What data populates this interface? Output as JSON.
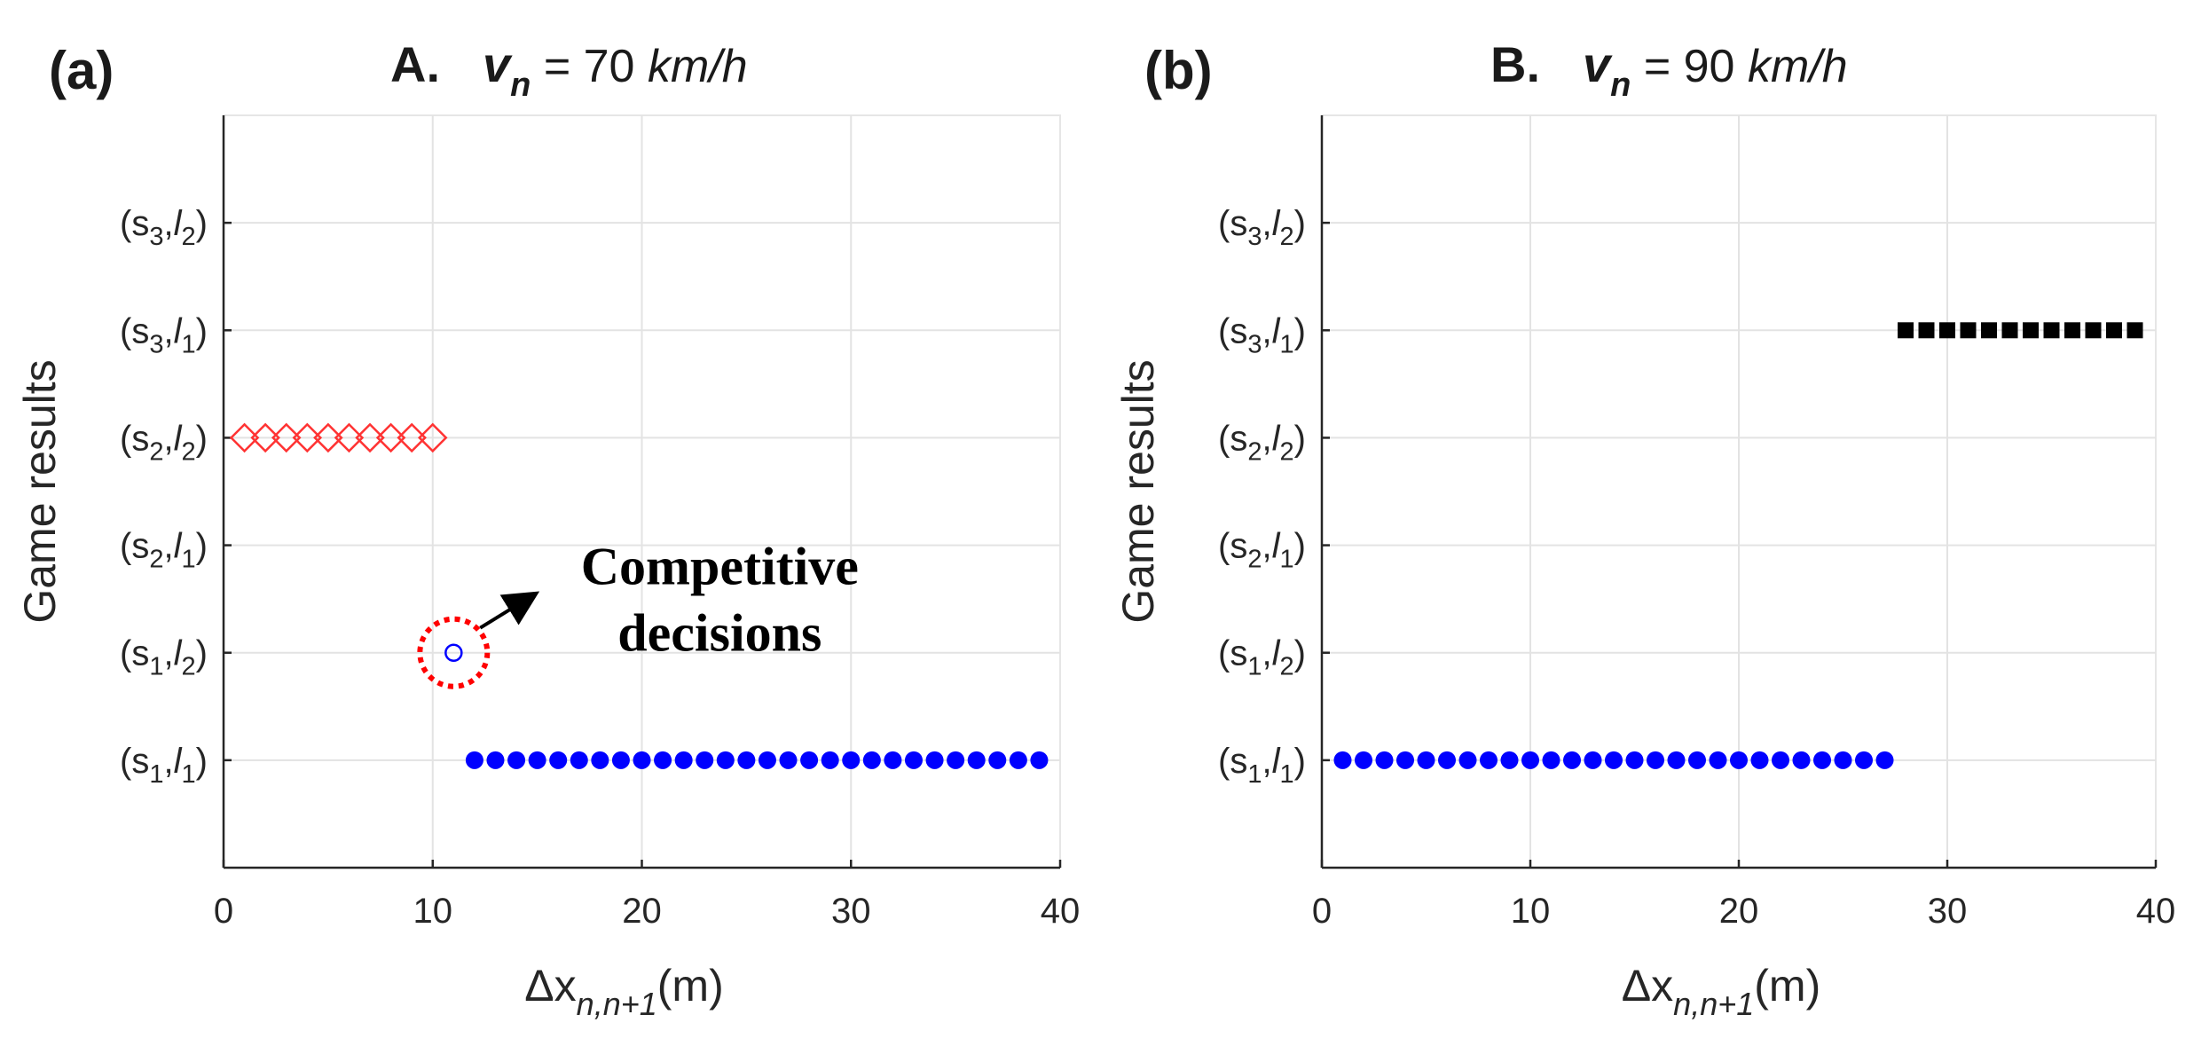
{
  "chart_data": [
    {
      "type": "scatter",
      "panel_label": "(a)",
      "title": {
        "prefix": "A.",
        "var": "v",
        "var_sub": "n",
        "eq": " = 70 ",
        "unit": "km/h"
      },
      "xlabel": {
        "main": "Δx",
        "sub": "n,n+1",
        "tail": "(m)"
      },
      "ylabel": "Game results",
      "xlim": [
        0,
        40
      ],
      "ylim": [
        0,
        7
      ],
      "xticks": [
        0,
        10,
        20,
        30,
        40
      ],
      "yticks": [
        {
          "value": 1,
          "s": "1",
          "l": "1"
        },
        {
          "value": 2,
          "s": "1",
          "l": "2"
        },
        {
          "value": 3,
          "s": "2",
          "l": "1"
        },
        {
          "value": 4,
          "s": "2",
          "l": "2"
        },
        {
          "value": 5,
          "s": "3",
          "l": "1"
        },
        {
          "value": 6,
          "s": "3",
          "l": "2"
        }
      ],
      "series": [
        {
          "name": "(s2,l2)",
          "marker": "diamond-open",
          "color": "#ff3333",
          "y": 4,
          "x": [
            1,
            2,
            3,
            4,
            5,
            6,
            7,
            8,
            9,
            10
          ]
        },
        {
          "name": "(s1,l2)",
          "marker": "circle-open",
          "color": "#0000ff",
          "y": 2,
          "x": [
            11
          ]
        },
        {
          "name": "(s1,l1)",
          "marker": "circle-filled",
          "color": "#0000ff",
          "y": 1,
          "x": [
            12,
            13,
            14,
            15,
            16,
            17,
            18,
            19,
            20,
            21,
            22,
            23,
            24,
            25,
            26,
            27,
            28,
            29,
            30,
            31,
            32,
            33,
            34,
            35,
            36,
            37,
            38,
            39
          ]
        }
      ],
      "annotation": {
        "line1": "Competitive",
        "line2": "decisions",
        "x": 11,
        "y": 2,
        "highlight_color": "#ff0000"
      }
    },
    {
      "type": "scatter",
      "panel_label": "(b)",
      "title": {
        "prefix": "B.",
        "var": "v",
        "var_sub": "n",
        "eq": " = 90 ",
        "unit": "km/h"
      },
      "xlabel": {
        "main": "Δx",
        "sub": "n,n+1",
        "tail": "(m)"
      },
      "ylabel": "Game results",
      "xlim": [
        0,
        40
      ],
      "ylim": [
        0,
        7
      ],
      "xticks": [
        0,
        10,
        20,
        30,
        40
      ],
      "yticks": [
        {
          "value": 1,
          "s": "1",
          "l": "1"
        },
        {
          "value": 2,
          "s": "1",
          "l": "2"
        },
        {
          "value": 3,
          "s": "2",
          "l": "1"
        },
        {
          "value": 4,
          "s": "2",
          "l": "2"
        },
        {
          "value": 5,
          "s": "3",
          "l": "1"
        },
        {
          "value": 6,
          "s": "3",
          "l": "2"
        }
      ],
      "series": [
        {
          "name": "(s1,l1)",
          "marker": "circle-filled",
          "color": "#0000ff",
          "y": 1,
          "x": [
            1,
            2,
            3,
            4,
            5,
            6,
            7,
            8,
            9,
            10,
            11,
            12,
            13,
            14,
            15,
            16,
            17,
            18,
            19,
            20,
            21,
            22,
            23,
            24,
            25,
            26,
            27
          ]
        },
        {
          "name": "(s3,l1)",
          "marker": "square-filled",
          "color": "#000000",
          "y": 5,
          "x": [
            28,
            29,
            30,
            31,
            32,
            33,
            34,
            35,
            36,
            37,
            38,
            39
          ]
        }
      ]
    }
  ]
}
